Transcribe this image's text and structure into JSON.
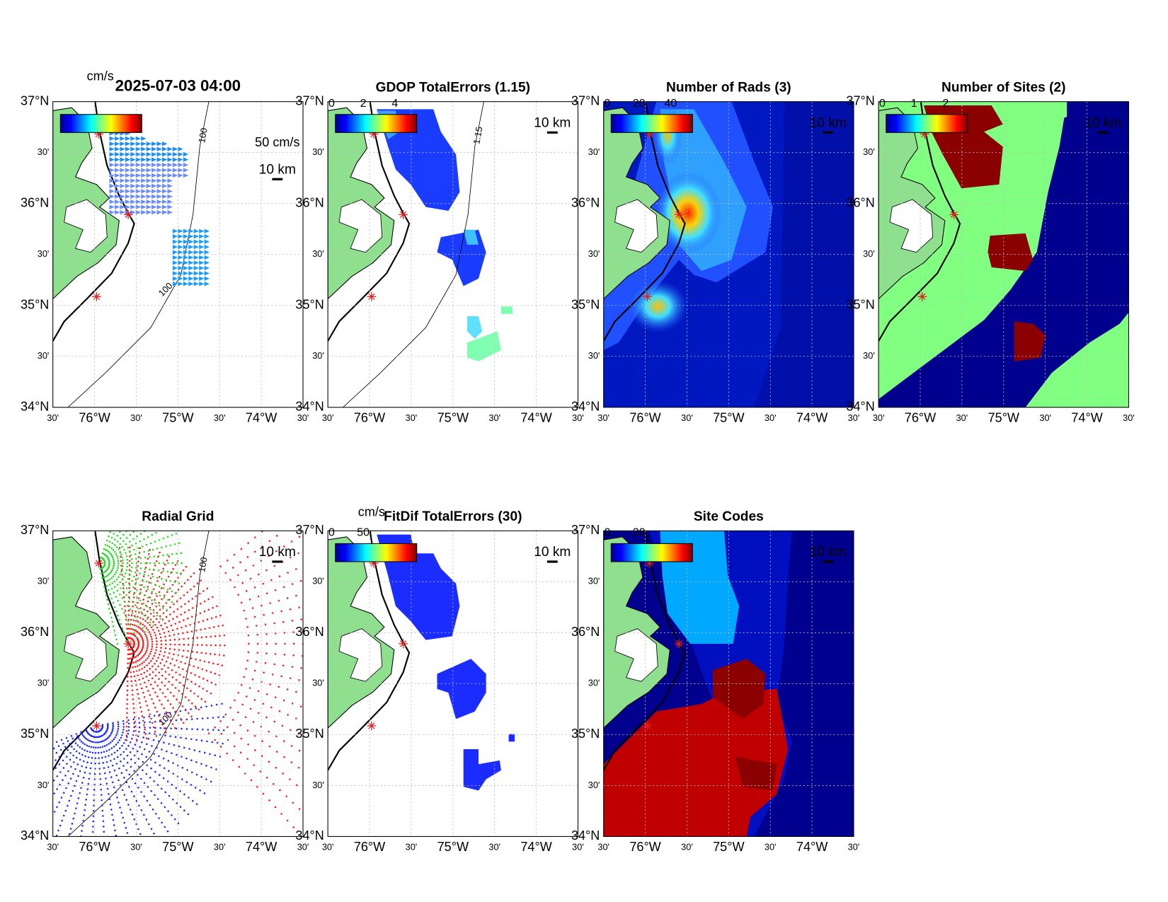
{
  "figure": {
    "lat_labels": [
      "37°N",
      "30'",
      "36°N",
      "30'",
      "35°N",
      "30'",
      "34°N"
    ],
    "lon_labels": [
      "30'",
      "76°W",
      "30'",
      "75°W",
      "30'",
      "74°W",
      "30'"
    ],
    "scale_bar": "10 km",
    "panels": [
      {
        "title": "2025-07-03 04:00",
        "colorbar_unit": "cm/s",
        "vector_scale": "50 cm/s",
        "contour_labels": [
          "100",
          "100"
        ]
      },
      {
        "title": "GDOP TotalErrors (1.15)",
        "colorbar_ticks": [
          0,
          2,
          4
        ],
        "contour_labels": [
          "1.15"
        ]
      },
      {
        "title": "Number of Rads (3)",
        "colorbar_ticks": [
          0,
          20,
          40
        ]
      },
      {
        "title": "Number of Sites (2)",
        "colorbar_ticks": [
          0,
          1,
          2
        ]
      },
      {
        "title": "Radial Grid",
        "contour_labels": [
          "100",
          "100"
        ]
      },
      {
        "title": "FitDif TotalErrors (30)",
        "colorbar_unit": "cm/s",
        "colorbar_ticks": [
          0,
          50
        ]
      },
      {
        "title": "Site Codes",
        "colorbar_ticks": [
          0,
          20
        ]
      }
    ]
  }
}
